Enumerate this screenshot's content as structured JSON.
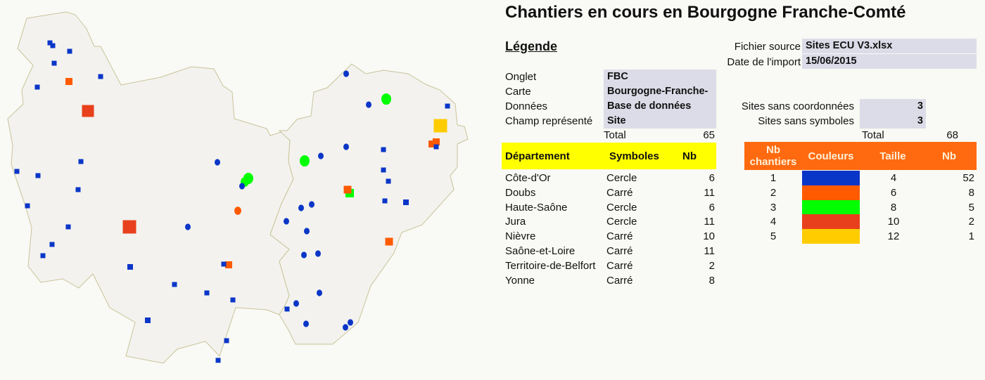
{
  "title": "Chantiers en cours en Bourgogne Franche-Comté",
  "legend_heading": "Légende",
  "source": {
    "file_label": "Fichier source",
    "file_value": "Sites ECU V3.xlsx",
    "date_label": "Date de l'import",
    "date_value": "15/06/2015"
  },
  "params": [
    {
      "label": "Onglet",
      "value": "FBC"
    },
    {
      "label": "Carte",
      "value": "Bourgogne-Franche-"
    },
    {
      "label": "Données",
      "value": "Base de données"
    },
    {
      "label": "Champ représenté",
      "value": "Site"
    }
  ],
  "missing": [
    {
      "label": "Sites sans coordonnées",
      "value": "3"
    },
    {
      "label": "Sites sans symboles",
      "value": "3"
    }
  ],
  "left_total": {
    "label": "Total",
    "value": "65"
  },
  "right_total": {
    "label": "Total",
    "value": "68"
  },
  "dept_table": {
    "headers": [
      "Département",
      "Symboles",
      "Nb"
    ],
    "header_color": "#ffff00",
    "rows": [
      [
        "Côte-d'Or",
        "Cercle",
        "6"
      ],
      [
        "Doubs",
        "Carré",
        "11"
      ],
      [
        "Haute-Saône",
        "Cercle",
        "6"
      ],
      [
        "Jura",
        "Cercle",
        "11"
      ],
      [
        "Nièvre",
        "Carré",
        "10"
      ],
      [
        "Saône-et-Loire",
        "Carré",
        "11"
      ],
      [
        "Territoire-de-Belfort",
        "Carré",
        "2"
      ],
      [
        "Yonne",
        "Carré",
        "8"
      ]
    ]
  },
  "size_table": {
    "headers": [
      "Nb chantiers",
      "Couleurs",
      "Taille",
      "Nb"
    ],
    "header_color": "#ff6a10",
    "rows": [
      {
        "nb_chantiers": "1",
        "color": "#0a36c8",
        "taille": "4",
        "nb": "52"
      },
      {
        "nb_chantiers": "2",
        "color": "#ff5a00",
        "taille": "6",
        "nb": "8"
      },
      {
        "nb_chantiers": "3",
        "color": "#00ff00",
        "taille": "8",
        "nb": "5"
      },
      {
        "nb_chantiers": "4",
        "color": "#e8401c",
        "taille": "10",
        "nb": "2"
      },
      {
        "nb_chantiers": "5",
        "color": "#ffcc00",
        "taille": "12",
        "nb": "1"
      }
    ]
  }
}
